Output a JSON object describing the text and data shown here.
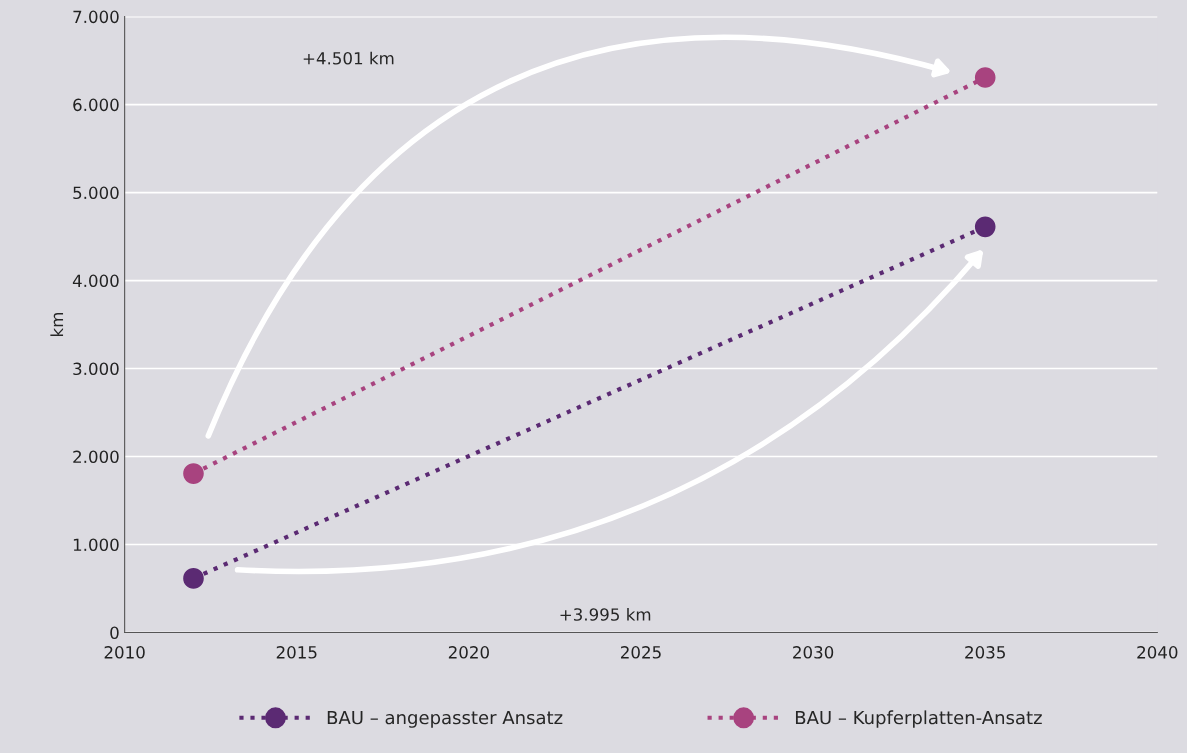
{
  "chart_data": {
    "type": "line",
    "ylabel": "km",
    "x": [
      2012,
      2035
    ],
    "series": [
      {
        "name": "BAU – angepasster Ansatz",
        "color": "#5b2a73",
        "values": [
          615,
          4610
        ]
      },
      {
        "name": "BAU – Kupferplatten-Ansatz",
        "color": "#a8437f",
        "values": [
          1806,
          6307
        ]
      }
    ],
    "xlim": [
      2010,
      2040
    ],
    "xticks": [
      2010,
      2015,
      2020,
      2025,
      2030,
      2035,
      2040
    ],
    "ylim": [
      0,
      7000
    ],
    "yticks": [
      {
        "value": 0,
        "label": "0"
      },
      {
        "value": 1000,
        "label": "1.000"
      },
      {
        "value": 2000,
        "label": "2.000"
      },
      {
        "value": 3000,
        "label": "3.000"
      },
      {
        "value": 4000,
        "label": "4.000"
      },
      {
        "value": 5000,
        "label": "5.000"
      },
      {
        "value": 6000,
        "label": "6.000"
      },
      {
        "value": 7000,
        "label": "7.000"
      }
    ],
    "annotations": [
      "+3.995 km",
      "+4.501 km"
    ],
    "grid": "y",
    "legend": "bottom",
    "marker": "circle",
    "line_style": "dotted"
  }
}
